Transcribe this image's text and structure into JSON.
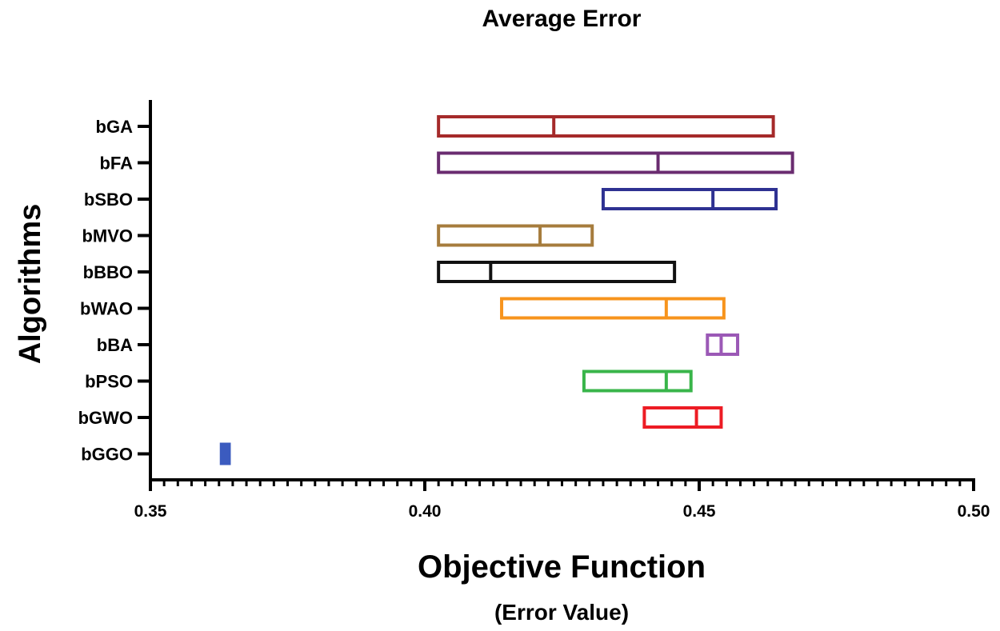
{
  "chart_data": {
    "type": "bar",
    "subtype": "floating-range-with-median",
    "title": "Average Error",
    "xlabel": "Objective Function",
    "xlabel_sub": "(Error Value)",
    "ylabel": "Algorithms",
    "xlim": [
      0.35,
      0.5
    ],
    "x_ticks": [
      "0.35",
      "0.40",
      "0.45",
      "0.50"
    ],
    "x_tick_values": [
      0.35,
      0.4,
      0.45,
      0.5
    ],
    "x_minor_step": 0.0025,
    "legend": "none",
    "series": [
      {
        "name": "bGA",
        "min": 0.4025,
        "median": 0.4235,
        "max": 0.4635,
        "color": "#A52A2A"
      },
      {
        "name": "bFA",
        "min": 0.4025,
        "median": 0.4425,
        "max": 0.467,
        "color": "#6A2C70"
      },
      {
        "name": "bSBO",
        "min": 0.4325,
        "median": 0.4525,
        "max": 0.464,
        "color": "#2E3192"
      },
      {
        "name": "bMVO",
        "min": 0.4025,
        "median": 0.421,
        "max": 0.4305,
        "color": "#A67C3D"
      },
      {
        "name": "bBBO",
        "min": 0.4025,
        "median": 0.412,
        "max": 0.4455,
        "color": "#111111"
      },
      {
        "name": "bWAO",
        "min": 0.414,
        "median": 0.444,
        "max": 0.4545,
        "color": "#F7941D"
      },
      {
        "name": "bBA",
        "min": 0.4515,
        "median": 0.454,
        "max": 0.457,
        "color": "#9B59B6"
      },
      {
        "name": "bPSO",
        "min": 0.429,
        "median": 0.444,
        "max": 0.4485,
        "color": "#39B54A"
      },
      {
        "name": "bGWO",
        "min": 0.44,
        "median": 0.4495,
        "max": 0.454,
        "color": "#ED1C24"
      },
      {
        "name": "bGGO",
        "min": 0.3625,
        "median": 0.3635,
        "max": 0.3645,
        "color": "#3B5BBF",
        "filled": true
      }
    ]
  }
}
